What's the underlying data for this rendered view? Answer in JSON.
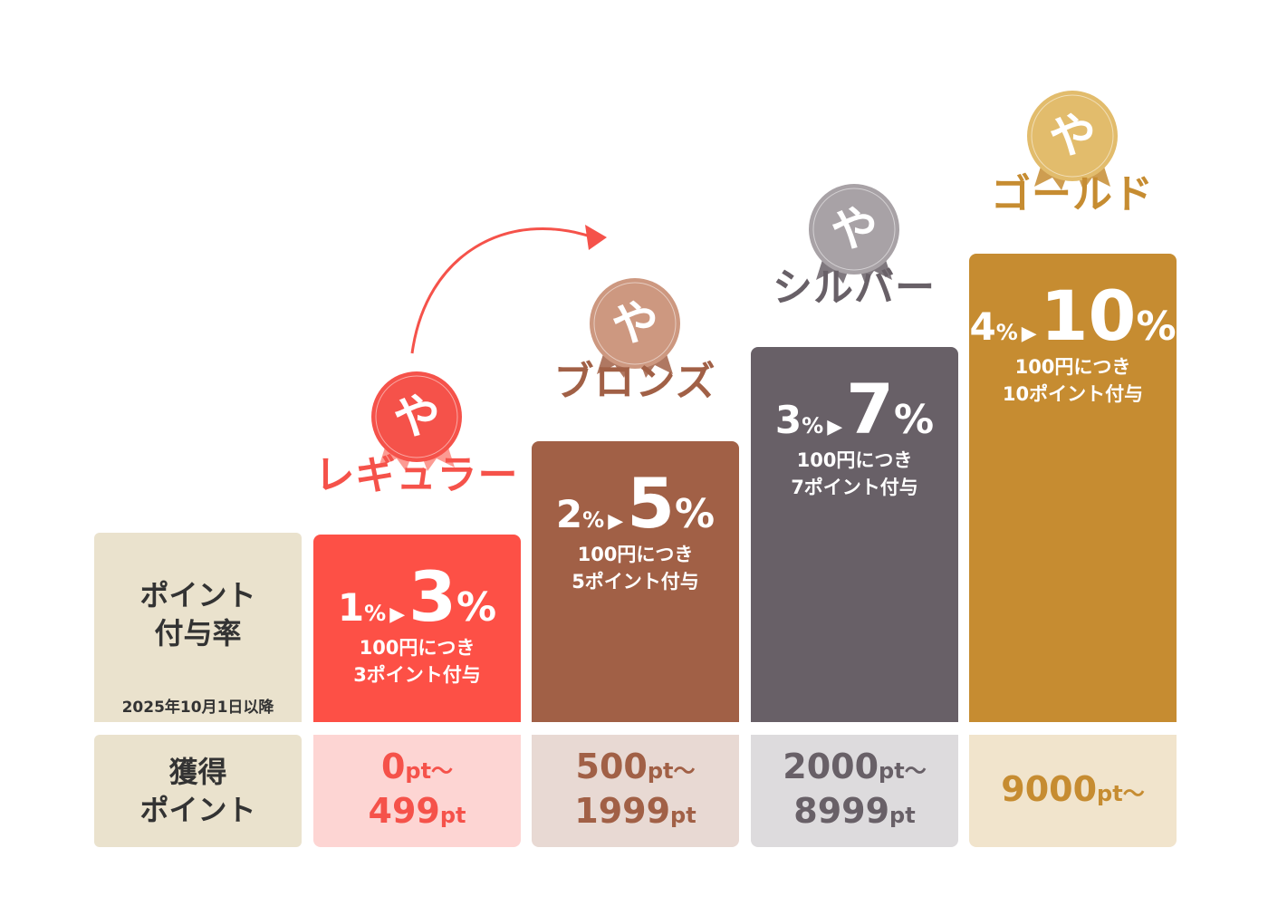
{
  "labels": {
    "rate_title_line1": "ポイント",
    "rate_title_line2": "付与率",
    "effective_date": "2025年10月1日以降",
    "points_title_line1": "獲得",
    "points_title_line2": "ポイント"
  },
  "medal_glyph": "や",
  "tiers": [
    {
      "name": "レギュラー",
      "from": "1",
      "to": "3",
      "pct": "%",
      "arrow": "▶",
      "desc1": "100円につき",
      "desc2": "3ポイント付与",
      "range1": "0",
      "range1_unit": "pt〜",
      "range2": "499",
      "range2_unit": "pt",
      "color": "#fd5046",
      "light": "#fdd5d3",
      "text": "#f5524a",
      "medal": "#f5524a",
      "ribbon": "#fb8a80"
    },
    {
      "name": "ブロンズ",
      "from": "2",
      "to": "5",
      "pct": "%",
      "arrow": "▶",
      "desc1": "100円につき",
      "desc2": "5ポイント付与",
      "range1": "500",
      "range1_unit": "pt〜",
      "range2": "1999",
      "range2_unit": "pt",
      "color": "#a16046",
      "light": "#e8d9d3",
      "text": "#a16046",
      "medal": "#cd9880",
      "ribbon": "#a16046"
    },
    {
      "name": "シルバー",
      "from": "3",
      "to": "7",
      "pct": "%",
      "arrow": "▶",
      "desc1": "100円につき",
      "desc2": "7ポイント付与",
      "range1": "2000",
      "range1_unit": "pt〜",
      "range2": "8999",
      "range2_unit": "pt",
      "color": "#686067",
      "light": "#dddbdd",
      "text": "#686067",
      "medal": "#a8a2a6",
      "ribbon": "#686067"
    },
    {
      "name": "ゴールド",
      "from": "4",
      "to": "10",
      "pct": "%",
      "arrow": "▶",
      "desc1": "100円につき",
      "desc2": "10ポイント付与",
      "range1": "9000",
      "range1_unit": "pt〜",
      "range2": "",
      "range2_unit": "",
      "color": "#c68c31",
      "light": "#f1e4cc",
      "text": "#c68c31",
      "medal": "#e2bc6c",
      "ribbon": "#c68c31"
    }
  ]
}
